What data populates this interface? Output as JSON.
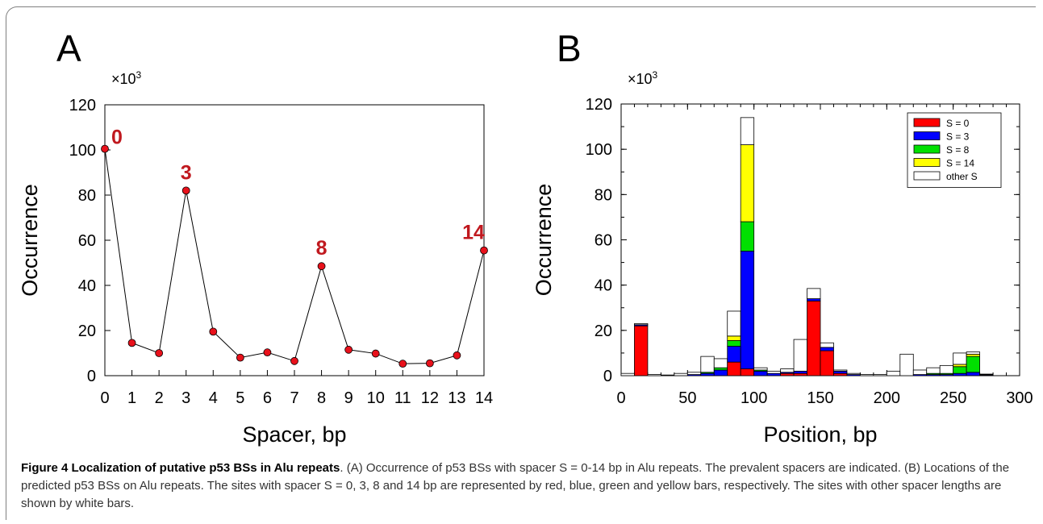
{
  "chart_data": [
    {
      "panel_letter": "A",
      "type": "line",
      "multiplier": "×10",
      "multiplier_exp": "3",
      "xlabel": "Spacer, bp",
      "ylabel": "Occurrence",
      "xlim": [
        0,
        14
      ],
      "ylim": [
        0,
        120
      ],
      "xticks": [
        0,
        1,
        2,
        3,
        4,
        5,
        6,
        7,
        8,
        9,
        10,
        11,
        12,
        13,
        14
      ],
      "yticks": [
        0,
        20,
        40,
        60,
        80,
        100,
        120
      ],
      "x": [
        0,
        1,
        2,
        3,
        4,
        5,
        6,
        7,
        8,
        9,
        10,
        11,
        12,
        13,
        14
      ],
      "y": [
        100.5,
        14.5,
        10,
        82,
        19.5,
        8,
        10.3,
        6.5,
        48.5,
        11.5,
        9.8,
        5.3,
        5.5,
        9,
        55.5
      ],
      "marker_color": "#e8111b",
      "annotations": [
        {
          "text": "0",
          "x": 0,
          "y": 100.5
        },
        {
          "text": "3",
          "x": 3,
          "y": 82
        },
        {
          "text": "8",
          "x": 8,
          "y": 48.5
        },
        {
          "text": "14",
          "x": 14,
          "y": 55.5
        }
      ],
      "annotation_color": "#c0191f",
      "grid": false
    },
    {
      "panel_letter": "B",
      "type": "bar",
      "stacked": true,
      "multiplier": "×10",
      "multiplier_exp": "3",
      "xlabel": "Position, bp",
      "ylabel": "Occurrence",
      "xlim": [
        0,
        300
      ],
      "ylim": [
        0,
        120
      ],
      "xticks": [
        0,
        50,
        100,
        150,
        200,
        250,
        300
      ],
      "yticks": [
        0,
        20,
        40,
        60,
        80,
        100,
        120
      ],
      "bin_width": 10,
      "bins_start": [
        0,
        10,
        20,
        30,
        40,
        50,
        60,
        70,
        80,
        90,
        100,
        110,
        120,
        130,
        140,
        150,
        160,
        170,
        180,
        190,
        200,
        210,
        220,
        230,
        240,
        250,
        260,
        270,
        280
      ],
      "legend_position": "top-right",
      "grid": false,
      "series": [
        {
          "name": "S = 0",
          "color": "#ff0000",
          "values": [
            0,
            22,
            0,
            0,
            0,
            0,
            0,
            0,
            6,
            3,
            0,
            0,
            1,
            1,
            33,
            11,
            1,
            0,
            0,
            0,
            0,
            0,
            0,
            0,
            0,
            0,
            0,
            0,
            0
          ]
        },
        {
          "name": "S = 3",
          "color": "#0000ff",
          "values": [
            0,
            0.5,
            0,
            0,
            0,
            0.5,
            1,
            2.5,
            7,
            52,
            2,
            1,
            0.5,
            1,
            1,
            1.5,
            1,
            0.5,
            0,
            0,
            0,
            0,
            0.5,
            0.5,
            0.5,
            1,
            1.5,
            0.3,
            0
          ]
        },
        {
          "name": "S = 8",
          "color": "#00e000",
          "values": [
            0,
            0,
            0,
            0,
            0,
            0,
            0.5,
            1,
            2.5,
            13,
            0.5,
            0,
            0,
            0,
            0,
            0,
            0,
            0,
            0,
            0,
            0,
            0,
            0,
            0.5,
            0.5,
            3,
            7,
            0.2,
            0
          ]
        },
        {
          "name": "S = 14",
          "color": "#ffff00",
          "values": [
            0,
            0,
            0,
            0,
            0,
            0,
            0,
            0,
            2,
            34,
            0,
            0,
            0,
            0,
            0,
            0,
            0,
            0,
            0,
            0,
            0,
            0,
            0,
            0,
            0,
            1,
            1,
            0,
            0
          ]
        },
        {
          "name": "other S",
          "color": "#ffffff",
          "values": [
            1,
            0.5,
            0.5,
            0.3,
            1,
            1,
            7,
            4,
            11,
            12,
            1,
            1,
            1.5,
            14,
            4.5,
            2,
            0.5,
            0.5,
            0.5,
            0.5,
            2,
            9.5,
            2,
            2.5,
            3.5,
            5,
            1,
            0.2,
            0
          ]
        }
      ]
    }
  ],
  "caption": {
    "title": "Figure 4 Localization of putative p53 BSs in Alu repeats",
    "text": ". (A) Occurrence of p53 BSs with spacer S = 0-14 bp in Alu repeats. The prevalent spacers are indicated. (B) Locations of the predicted p53 BSs on Alu repeats. The sites with spacer S = 0, 3, 8 and 14 bp are represented by red, blue, green and yellow bars, respectively. The sites with other spacer lengths are shown by white bars."
  }
}
